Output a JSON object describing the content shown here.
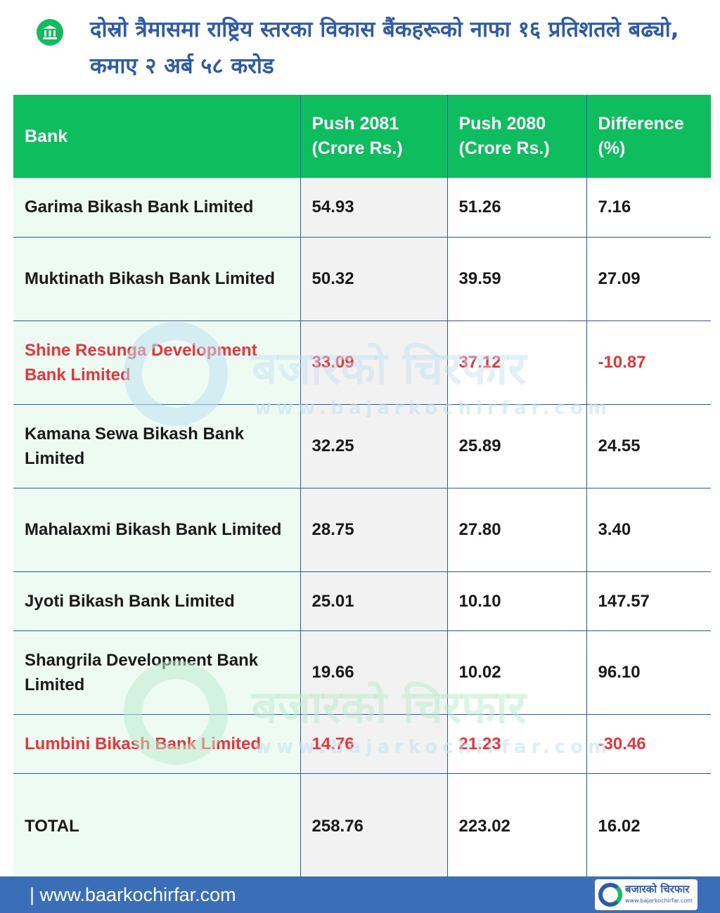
{
  "header": {
    "title": "दोस्रो त्रैमासमा राष्ट्रिय स्तरका विकास बैंकहरूको नाफा १६ प्रतिशतले बढ्यो, कमाए २ अर्ब ५८ करोड",
    "icon": "bank-building-icon"
  },
  "table": {
    "headers": [
      "Bank",
      "Push 2081\n(Crore Rs.)",
      "Push 2080\n(Crore Rs.)",
      "Difference\n(%)"
    ],
    "rows": [
      {
        "bank": "Garima Bikash Bank Limited",
        "push_2081": "54.93",
        "push_2080": "51.26",
        "difference": "7.16"
      },
      {
        "bank": "Muktinath Bikash Bank Limited",
        "push_2081": "50.32",
        "push_2080": "39.59",
        "difference": "27.09"
      },
      {
        "bank": "Shine Resunga Development Bank Limited",
        "push_2081": "33.09",
        "push_2080": "37.12",
        "difference": "-10.87"
      },
      {
        "bank": "Kamana Sewa Bikash Bank Limited",
        "push_2081": "32.25",
        "push_2080": "25.89",
        "difference": "24.55"
      },
      {
        "bank": "Mahalaxmi Bikash Bank Limited",
        "push_2081": "28.75",
        "push_2080": "27.80",
        "difference": "3.40"
      },
      {
        "bank": "Jyoti Bikash Bank Limited",
        "push_2081": "25.01",
        "push_2080": "10.10",
        "difference": "147.57"
      },
      {
        "bank": "Shangrila Development Bank Limited",
        "push_2081": "19.66",
        "push_2080": "10.02",
        "difference": "96.10"
      },
      {
        "bank": "Lumbini Bikash Bank Limited",
        "push_2081": "14.76",
        "push_2080": "21.23",
        "difference": "-30.46"
      }
    ],
    "total": {
      "bank": "TOTAL",
      "push_2081": "258.76",
      "push_2080": "223.02",
      "difference": "16.02"
    }
  },
  "watermark": {
    "name": "बजारको चिरफार",
    "url": "www.bajarkochirfar.com"
  },
  "footer": {
    "url": "| www.baarkochirfar.com",
    "logo_name": "बजारको चिरफार",
    "logo_url": "www.bajarkochirfar.com"
  },
  "colors": {
    "title": "#2c5ba8",
    "header_bg": "#0dbd5e",
    "negative": "#e8353a",
    "footer_bg": "#3a6fb8"
  }
}
